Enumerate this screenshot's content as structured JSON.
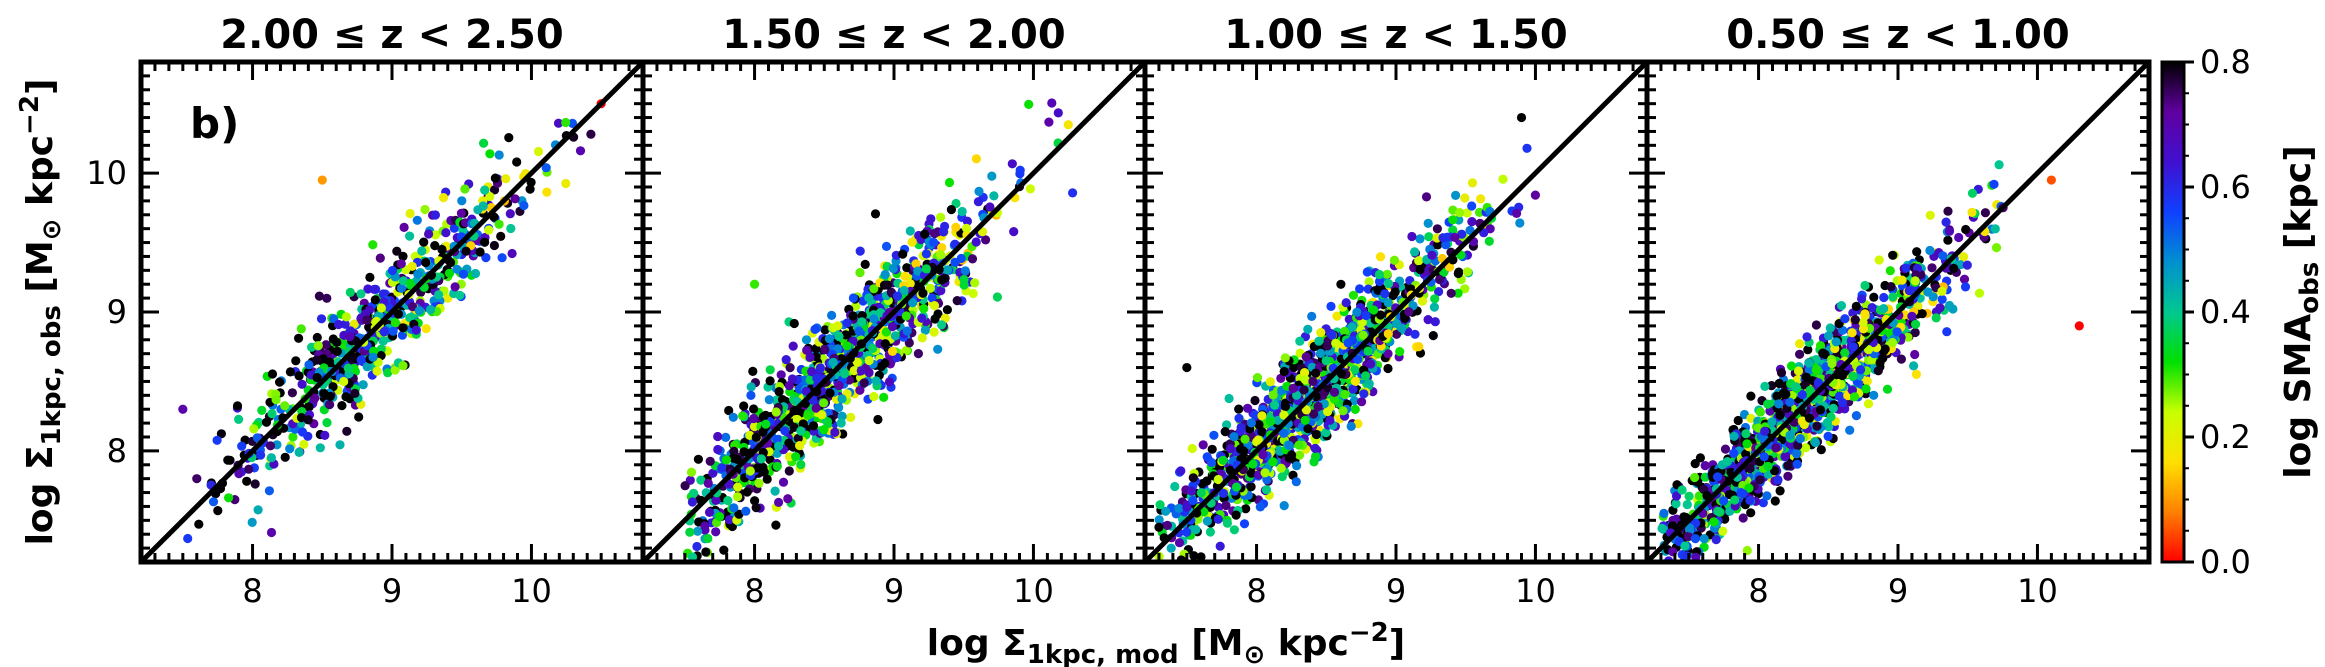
{
  "figure": {
    "panel_tag": "b)",
    "xlabel": "log Σ1kpc,mod [M⊙ kpc−2]",
    "ylabel": "log Σ1kpc,obs [M⊙ kpc−2]",
    "colorbar_label": "log SMAobs [kpc]"
  },
  "chart_data": [
    {
      "type": "scatter",
      "title": "2.00 ≤ z < 2.50",
      "xlim": [
        7.2,
        10.8
      ],
      "ylim": [
        7.2,
        10.8
      ],
      "xticks": [
        "8",
        "9",
        "10"
      ],
      "yticks": [
        "8",
        "9",
        "10"
      ],
      "one_to_one_line": true,
      "cloud": {
        "n": 650,
        "x_range": [
          7.5,
          10.6
        ],
        "y_offset_sd": 0.2,
        "x_mean": 8.9,
        "x_sd": 0.55
      },
      "outliers": [
        {
          "x": 7.6,
          "y": 7.8,
          "c": 0.75
        },
        {
          "x": 7.5,
          "y": 8.3,
          "c": 0.7
        },
        {
          "x": 8.5,
          "y": 9.95,
          "c": 0.1
        },
        {
          "x": 10.5,
          "y": 10.5,
          "c": 0.0
        }
      ]
    },
    {
      "type": "scatter",
      "title": "1.50 ≤ z < 2.00",
      "xlim": [
        7.2,
        10.8
      ],
      "ylim": [
        7.2,
        10.8
      ],
      "xticks": [
        "8",
        "9",
        "10"
      ],
      "yticks": [
        "8",
        "9",
        "10"
      ],
      "one_to_one_line": true,
      "cloud": {
        "n": 1100,
        "x_range": [
          7.5,
          10.3
        ],
        "y_offset_sd": 0.22,
        "x_mean": 8.6,
        "x_sd": 0.55
      },
      "outliers": [
        {
          "x": 8.0,
          "y": 9.2,
          "c": 0.3
        }
      ]
    },
    {
      "type": "scatter",
      "title": "1.00 ≤ z < 1.50",
      "xlim": [
        7.2,
        10.8
      ],
      "ylim": [
        7.2,
        10.8
      ],
      "xticks": [
        "8",
        "9",
        "10"
      ],
      "yticks": [
        "8",
        "9",
        "10"
      ],
      "one_to_one_line": true,
      "cloud": {
        "n": 1300,
        "x_range": [
          7.3,
          10.0
        ],
        "y_offset_sd": 0.2,
        "x_mean": 8.4,
        "x_sd": 0.55
      },
      "outliers": [
        {
          "x": 7.5,
          "y": 8.6,
          "c": 0.8
        },
        {
          "x": 9.9,
          "y": 10.4,
          "c": 0.8
        },
        {
          "x": 7.3,
          "y": 7.45,
          "c": 0.8
        }
      ]
    },
    {
      "type": "scatter",
      "title": "0.50 ≤ z < 1.00",
      "xlim": [
        7.2,
        10.8
      ],
      "ylim": [
        7.2,
        10.8
      ],
      "xticks": [
        "8",
        "9",
        "10"
      ],
      "yticks": [
        "8",
        "9",
        "10"
      ],
      "one_to_one_line": true,
      "cloud": {
        "n": 1300,
        "x_range": [
          7.3,
          9.8
        ],
        "y_offset_sd": 0.18,
        "x_mean": 8.3,
        "x_sd": 0.55
      },
      "outliers": [
        {
          "x": 10.3,
          "y": 8.9,
          "c": 0.0
        },
        {
          "x": 10.1,
          "y": 9.95,
          "c": 0.05
        },
        {
          "x": 7.6,
          "y": 7.55,
          "c": 0.7
        }
      ]
    }
  ],
  "colorbar": {
    "min": 0.0,
    "max": 0.8,
    "ticks": [
      "0.0",
      "0.2",
      "0.4",
      "0.6",
      "0.8"
    ],
    "colormap": [
      "#ff0000",
      "#ff8000",
      "#ffe000",
      "#c8ff00",
      "#00e000",
      "#00c890",
      "#0090d0",
      "#1040ff",
      "#4010d0",
      "#6000a0",
      "#000000"
    ]
  },
  "colors": {
    "axis": "#000000",
    "line": "#000000",
    "background": "#ffffff"
  }
}
